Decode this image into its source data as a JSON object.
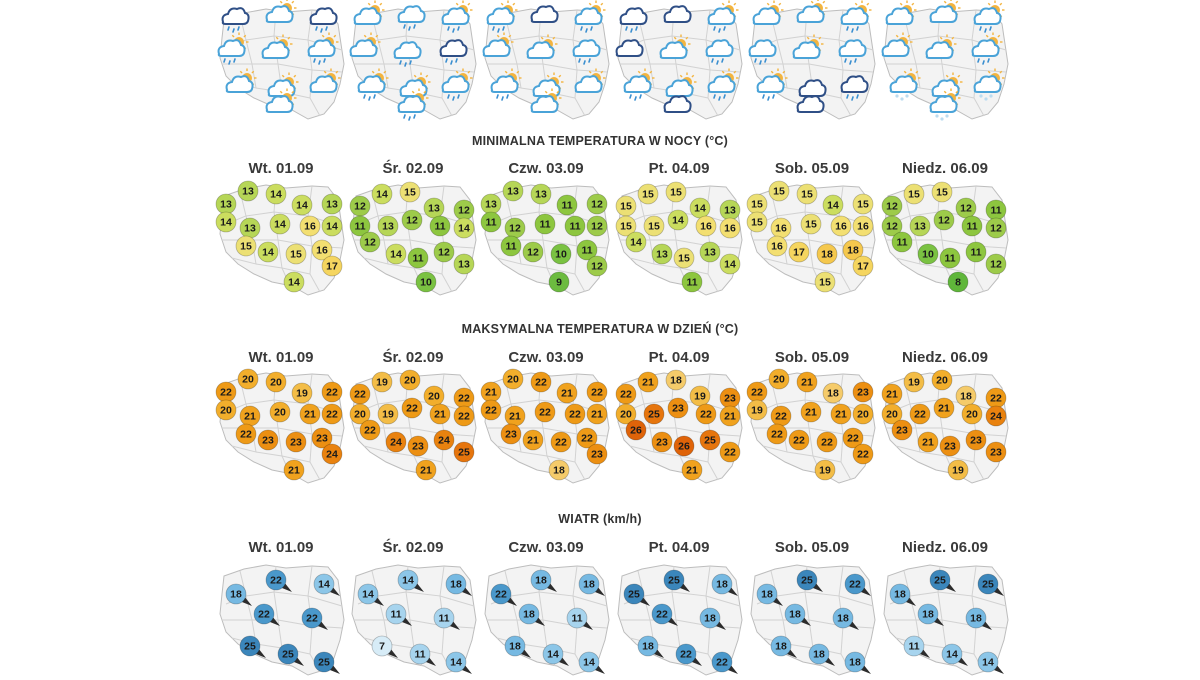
{
  "sections": {
    "min_title": "MINIMALNA TEMPERATURA W NOCY (°C)",
    "max_title": "MAKSYMALNA TEMPERATURA W DZIEŃ (°C)",
    "wind_title": "WIATR (km/h)"
  },
  "days": [
    "Wt. 01.09",
    "Śr. 02.09",
    "Czw. 03.09",
    "Pt. 04.09",
    "Sob. 05.09",
    "Niedz. 06.09"
  ],
  "weather_icons": [
    [
      "storm-cloud-rain",
      "sun-cloud",
      "storm-cloud-rain",
      "sun-cloud-rain",
      "sun-cloud",
      "sun-cloud-rain",
      "sun-cloud",
      "sun-cloud",
      "sun-cloud",
      "sun-cloud"
    ],
    [
      "sun-cloud",
      "cloud-rain",
      "sun-cloud-rain",
      "sun-cloud",
      "cloud-rain",
      "storm-cloud-rain",
      "sun-cloud-rain",
      "sun-cloud",
      "sun-cloud-rain",
      "sun-cloud-rain"
    ],
    [
      "sun-cloud-rain",
      "storm-cloud",
      "sun-cloud-rain",
      "sun-cloud",
      "sun-cloud",
      "cloud-rain",
      "sun-cloud-rain",
      "sun-cloud-rain",
      "sun-cloud",
      "sun-cloud"
    ],
    [
      "storm-cloud-rain",
      "storm-cloud",
      "sun-cloud-rain",
      "storm-cloud",
      "sun-cloud",
      "cloud-rain",
      "sun-cloud-rain",
      "sun-cloud",
      "sun-cloud-rain",
      "storm-cloud"
    ],
    [
      "sun-cloud",
      "sun-cloud",
      "sun-cloud-rain",
      "cloud-rain",
      "sun-cloud",
      "cloud-rain",
      "sun-cloud-rain",
      "storm-cloud-rain",
      "storm-cloud-rain",
      "storm-cloud"
    ],
    [
      "sun-cloud",
      "sun-cloud",
      "sun-cloud-rain",
      "sun-cloud",
      "sun-cloud",
      "sun-cloud-rain",
      "sun-cloud-hail",
      "sun-cloud-hail",
      "sun-cloud-hail",
      "sun-cloud-hail"
    ]
  ],
  "min_temps": [
    [
      13,
      13,
      14,
      14,
      13,
      14,
      13,
      14,
      16,
      14,
      15,
      14,
      15,
      16,
      17,
      14
    ],
    [
      12,
      14,
      15,
      13,
      12,
      11,
      13,
      12,
      11,
      14,
      12,
      14,
      11,
      12,
      13,
      10
    ],
    [
      13,
      13,
      13,
      11,
      12,
      11,
      12,
      11,
      11,
      12,
      11,
      12,
      10,
      11,
      12,
      9
    ],
    [
      15,
      15,
      15,
      14,
      13,
      15,
      15,
      14,
      16,
      16,
      14,
      13,
      15,
      13,
      14,
      11
    ],
    [
      15,
      15,
      15,
      14,
      15,
      15,
      16,
      15,
      16,
      16,
      16,
      17,
      18,
      18,
      17,
      15
    ],
    [
      12,
      15,
      15,
      12,
      11,
      12,
      13,
      12,
      11,
      12,
      11,
      10,
      11,
      11,
      12,
      8
    ]
  ],
  "max_temps": [
    [
      22,
      20,
      20,
      19,
      22,
      20,
      21,
      20,
      21,
      22,
      22,
      23,
      23,
      23,
      24,
      21
    ],
    [
      22,
      19,
      20,
      20,
      22,
      20,
      19,
      22,
      21,
      22,
      22,
      24,
      23,
      24,
      25,
      21
    ],
    [
      21,
      20,
      22,
      21,
      22,
      22,
      21,
      22,
      22,
      21,
      23,
      21,
      22,
      22,
      23,
      18
    ],
    [
      22,
      21,
      18,
      19,
      23,
      20,
      25,
      23,
      22,
      21,
      26,
      23,
      26,
      25,
      22,
      21
    ],
    [
      22,
      20,
      21,
      18,
      23,
      19,
      22,
      21,
      21,
      20,
      22,
      22,
      22,
      22,
      22,
      19
    ],
    [
      21,
      19,
      20,
      18,
      22,
      20,
      22,
      21,
      20,
      24,
      23,
      21,
      23,
      23,
      23,
      19
    ]
  ],
  "wind": [
    [
      18,
      22,
      14,
      22,
      22,
      25,
      25,
      25
    ],
    [
      14,
      14,
      18,
      11,
      11,
      7,
      11,
      14
    ],
    [
      22,
      18,
      18,
      18,
      11,
      18,
      14,
      14
    ],
    [
      25,
      25,
      18,
      22,
      18,
      18,
      22,
      22
    ],
    [
      18,
      25,
      22,
      18,
      18,
      18,
      18,
      18
    ],
    [
      18,
      25,
      25,
      18,
      18,
      11,
      14,
      14
    ]
  ],
  "colors": {
    "min": {
      "8": "#5fb63a",
      "9": "#6cbb3f",
      "10": "#7ac242",
      "11": "#8dc63f",
      "12": "#9dcb4a",
      "13": "#b6d657",
      "14": "#cbdd5f",
      "15": "#ece074",
      "16": "#f3df71",
      "17": "#f5d55f",
      "18": "#f5c84d"
    },
    "max": {
      "18": "#f5cb6a",
      "19": "#f3bd47",
      "20": "#f2ae2c",
      "21": "#f0a21e",
      "22": "#ee9a17",
      "23": "#ec8f12",
      "24": "#e9820f",
      "25": "#e6750d",
      "26": "#df6309"
    },
    "wind": {
      "7": "#d7ecf7",
      "11": "#a7d4ee",
      "14": "#8cc6e8",
      "18": "#76b9e2",
      "22": "#4a98cb",
      "25": "#3b86bb"
    },
    "map_fill": "#f3f3f3",
    "map_border": "#bdbdbd",
    "storm_cloud": "#2f4f86",
    "cloud": "#4aa3d8",
    "sun": "#f3b43f",
    "rain": "#3a8fd0"
  }
}
